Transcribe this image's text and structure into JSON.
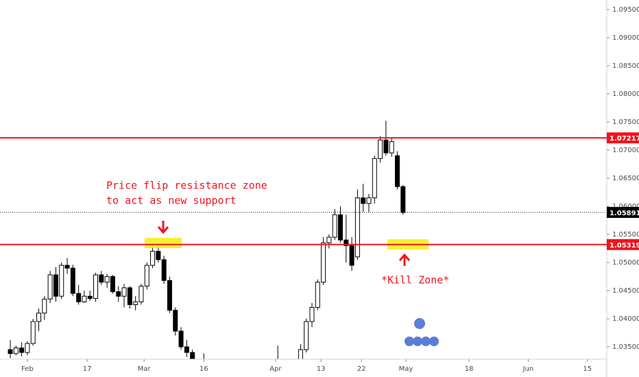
{
  "chart_data": {
    "type": "candlestick",
    "x": [
      0,
      1,
      2,
      3,
      4,
      5,
      6,
      7,
      8,
      9,
      10,
      11,
      12,
      13,
      14,
      15,
      16,
      17,
      18,
      19,
      20,
      21,
      22,
      23,
      24,
      25,
      26,
      27,
      28,
      29,
      30,
      31,
      32,
      34,
      47,
      51,
      52,
      53,
      54,
      55,
      56,
      57,
      58,
      59,
      60,
      61,
      62,
      63,
      64,
      65,
      66,
      67,
      68,
      69
    ],
    "open": [
      1.0345,
      1.0338,
      1.0348,
      1.034,
      1.0356,
      1.0395,
      1.041,
      1.0435,
      1.0478,
      1.044,
      1.0495,
      1.049,
      1.0445,
      1.043,
      1.044,
      1.0436,
      1.0478,
      1.0465,
      1.0475,
      1.0448,
      1.044,
      1.0455,
      1.0425,
      1.043,
      1.0458,
      1.0495,
      1.052,
      1.0505,
      1.0468,
      1.0415,
      1.0378,
      1.035,
      1.034,
      1.032,
      1.03,
      1.031,
      1.0345,
      1.0395,
      1.042,
      1.0465,
      1.0535,
      1.0545,
      1.0585,
      1.054,
      1.053,
      1.051,
      1.0615,
      1.0605,
      1.0615,
      1.0685,
      1.0718,
      1.0695,
      1.069,
      1.0635
    ],
    "high": [
      1.0362,
      1.0352,
      1.0358,
      1.036,
      1.04,
      1.0418,
      1.044,
      1.0485,
      1.0492,
      1.05,
      1.0508,
      1.0496,
      1.046,
      1.045,
      1.045,
      1.0482,
      1.0485,
      1.048,
      1.0478,
      1.0458,
      1.0462,
      1.0458,
      1.044,
      1.0462,
      1.05,
      1.053,
      1.0533,
      1.0512,
      1.0475,
      1.042,
      1.0385,
      1.0362,
      1.0345,
      1.0338,
      1.0352,
      1.0355,
      1.04,
      1.0428,
      1.047,
      1.0545,
      1.055,
      1.0595,
      1.06,
      1.0585,
      1.0545,
      1.063,
      1.064,
      1.0622,
      1.069,
      1.0725,
      1.0752,
      1.0722,
      1.0698,
      1.0638
    ],
    "low": [
      1.033,
      1.0335,
      1.0333,
      1.0335,
      1.0352,
      1.0378,
      1.0398,
      1.0428,
      1.043,
      1.0435,
      1.048,
      1.044,
      1.0425,
      1.0428,
      1.0432,
      1.043,
      1.046,
      1.0455,
      1.0445,
      1.043,
      1.042,
      1.0418,
      1.0415,
      1.0425,
      1.0452,
      1.049,
      1.05,
      1.0462,
      1.041,
      1.037,
      1.0345,
      1.0332,
      1.032,
      1.03,
      1.029,
      1.03,
      1.034,
      1.0385,
      1.0415,
      1.046,
      1.0525,
      1.054,
      1.0535,
      1.05,
      1.0485,
      1.0505,
      1.059,
      1.059,
      1.0605,
      1.0678,
      1.069,
      1.0688,
      1.063,
      1.0585
    ],
    "close": [
      1.0338,
      1.0348,
      1.034,
      1.0356,
      1.0395,
      1.041,
      1.0435,
      1.0478,
      1.044,
      1.0495,
      1.049,
      1.0445,
      1.043,
      1.044,
      1.0436,
      1.0478,
      1.0465,
      1.0475,
      1.0448,
      1.044,
      1.0455,
      1.0425,
      1.043,
      1.0458,
      1.0495,
      1.052,
      1.0505,
      1.0468,
      1.0415,
      1.0378,
      1.035,
      1.034,
      1.0325,
      1.031,
      1.031,
      1.0345,
      1.0395,
      1.042,
      1.0465,
      1.0535,
      1.0545,
      1.0585,
      1.054,
      1.053,
      1.0495,
      1.0615,
      1.0605,
      1.0615,
      1.0685,
      1.0718,
      1.0695,
      1.0715,
      1.0635,
      1.0589
    ],
    "up_color": "#ffffff",
    "down_color": "#000000",
    "wick_color": "#000000",
    "xlim": [
      -1.81,
      104.8
    ],
    "ylim": [
      1.0328,
      1.0967
    ],
    "xticks": [
      {
        "value": 3,
        "label": "Feb"
      },
      {
        "value": 13.5,
        "label": "17"
      },
      {
        "value": 23.5,
        "label": "Mar"
      },
      {
        "value": 34,
        "label": "16"
      },
      {
        "value": 46.6,
        "label": "Apr"
      },
      {
        "value": 54.6,
        "label": "13"
      },
      {
        "value": 61.7,
        "label": "22"
      },
      {
        "value": 69.5,
        "label": "May"
      },
      {
        "value": 80.6,
        "label": "18"
      },
      {
        "value": 91,
        "label": "Jun"
      },
      {
        "value": 101.4,
        "label": "15"
      }
    ],
    "yticks": [
      {
        "value": 1.035,
        "label": "1.03500"
      },
      {
        "value": 1.04,
        "label": "1.04000"
      },
      {
        "value": 1.045,
        "label": "1.04500"
      },
      {
        "value": 1.05,
        "label": "1.05000"
      },
      {
        "value": 1.055,
        "label": "1.05500"
      },
      {
        "value": 1.06,
        "label": "1.06000"
      },
      {
        "value": 1.065,
        "label": "1.06500"
      },
      {
        "value": 1.07,
        "label": "1.07000"
      },
      {
        "value": 1.075,
        "label": "1.07500"
      },
      {
        "value": 1.08,
        "label": "1.08000"
      },
      {
        "value": 1.085,
        "label": "1.08500"
      },
      {
        "value": 1.09,
        "label": "1.09000"
      },
      {
        "value": 1.095,
        "label": "1.09500"
      }
    ],
    "hlines": [
      {
        "value": 1.07217,
        "color": "#f0141e",
        "dashed": false
      },
      {
        "value": 1.05319,
        "color": "#f0141e",
        "dashed": false
      },
      {
        "value": 1.05891,
        "color": "#000000",
        "dashed": true
      }
    ],
    "annotations": [
      "Price flip resistance zone",
      "to act as new support",
      "*Kill Zone*"
    ]
  }
}
